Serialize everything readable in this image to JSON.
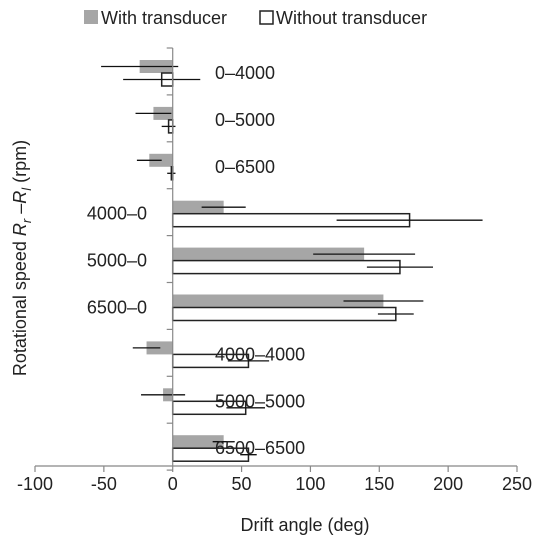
{
  "chart_data": {
    "type": "bar",
    "orientation": "horizontal",
    "xlabel": "Drift angle (deg)",
    "ylabel_parts": [
      "Rotational speed ",
      "R",
      "r",
      " –",
      "R",
      "l",
      " (rpm)"
    ],
    "xlim": [
      -100,
      250
    ],
    "xticks": [
      -100,
      -50,
      0,
      50,
      100,
      150,
      200,
      250
    ],
    "grid": false,
    "legend_position": "top",
    "categories": [
      "0–4000",
      "0–5000",
      "0–6500",
      "4000–0",
      "5000–0",
      "6500–0",
      "4000–4000",
      "5000–5000",
      "6500–6500"
    ],
    "label_side": [
      "right",
      "right",
      "right",
      "left",
      "left",
      "left",
      "right",
      "right",
      "right"
    ],
    "series": [
      {
        "name": "With transducer",
        "style": "filled",
        "color": "#a6a6a6",
        "values": [
          -24,
          -14,
          -17,
          37,
          139,
          153,
          -19,
          -7,
          37
        ],
        "error": [
          28,
          13,
          9,
          16,
          37,
          29,
          10,
          16,
          8
        ]
      },
      {
        "name": "Without transducer",
        "style": "outline",
        "color": "#ffffff",
        "values": [
          -8,
          -3,
          -1,
          172,
          165,
          162,
          55,
          53,
          55
        ],
        "error": [
          28,
          5,
          3,
          53,
          24,
          13,
          15,
          14,
          6
        ]
      }
    ]
  }
}
